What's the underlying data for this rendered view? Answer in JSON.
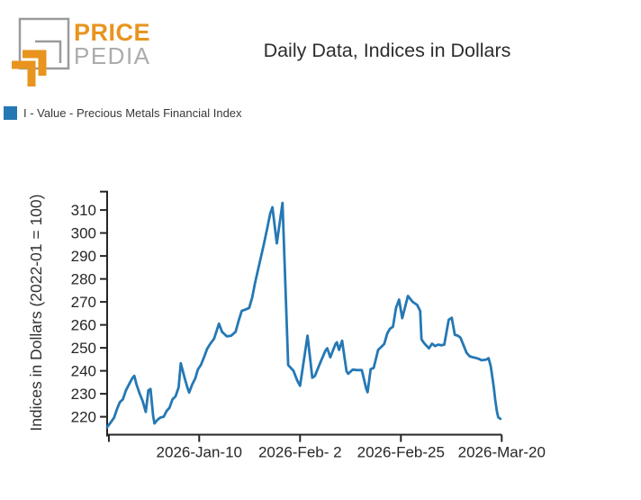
{
  "header": {
    "logo_line1": "PRICE",
    "logo_line2": "PEDIA",
    "title": "Daily Data, Indices in Dollars"
  },
  "legend": {
    "swatch_color": "#2478b4",
    "label": "I - Value - Precious Metals Financial Index"
  },
  "colors": {
    "series_blue": "#2478b4",
    "axis": "#262626",
    "logo_orange": "#E8941E",
    "logo_gray": "#9B9B9B",
    "title_text": "#2d2d2d"
  },
  "chart_data": {
    "type": "line",
    "title": "Daily Data, Indices in Dollars",
    "xlabel": "",
    "ylabel": "Indices in Dollars (2022-01 = 100)",
    "grid": false,
    "legend_position": "top-left",
    "ylim": [
      212.2,
      318.4
    ],
    "y_ticks": [
      220,
      230,
      240,
      250,
      260,
      270,
      280,
      290,
      300,
      310
    ],
    "x_unit": "day-index (daily observations)",
    "x_range": [
      0,
      90
    ],
    "x_ticks": [
      {
        "day": 21,
        "label": "2026-Jan-10"
      },
      {
        "day": 44,
        "label": "2026-Feb- 2"
      },
      {
        "day": 67,
        "label": "2026-Feb-25"
      },
      {
        "day": 90,
        "label": "2026-Mar-20"
      }
    ],
    "x_minor_ticks": [
      0.4
    ],
    "series": [
      {
        "name": "I - Value - Precious Metals Financial Index",
        "color": "#2478b4",
        "points": [
          [
            0,
            215.5
          ],
          [
            0.8,
            217.5
          ],
          [
            1.6,
            219.7
          ],
          [
            2.3,
            223.6
          ],
          [
            2.9,
            226.3
          ],
          [
            3.6,
            227.6
          ],
          [
            4.3,
            231.5
          ],
          [
            5,
            234.1
          ],
          [
            5.7,
            236.7
          ],
          [
            6.2,
            237.8
          ],
          [
            6.7,
            234.1
          ],
          [
            7.4,
            230.2
          ],
          [
            8.1,
            226.9
          ],
          [
            8.8,
            222.1
          ],
          [
            9.4,
            231.5
          ],
          [
            9.9,
            232.1
          ],
          [
            10.5,
            220.4
          ],
          [
            10.8,
            217.1
          ],
          [
            11.5,
            218.7
          ],
          [
            12.2,
            219.7
          ],
          [
            12.9,
            220.0
          ],
          [
            13.6,
            222.6
          ],
          [
            14.2,
            223.9
          ],
          [
            14.9,
            227.6
          ],
          [
            15.6,
            228.9
          ],
          [
            16.3,
            232.8
          ],
          [
            16.8,
            243.3
          ],
          [
            17.7,
            236.7
          ],
          [
            18.3,
            232.8
          ],
          [
            18.7,
            230.5
          ],
          [
            19.4,
            234.1
          ],
          [
            20.1,
            236.7
          ],
          [
            20.7,
            240.6
          ],
          [
            21.4,
            242.6
          ],
          [
            22.1,
            245.9
          ],
          [
            22.8,
            249.5
          ],
          [
            23.5,
            251.7
          ],
          [
            24.4,
            254.0
          ],
          [
            25.5,
            260.5
          ],
          [
            26.2,
            257.0
          ],
          [
            27.3,
            255.0
          ],
          [
            28.3,
            255.3
          ],
          [
            29.3,
            257.0
          ],
          [
            30,
            261.8
          ],
          [
            30.7,
            266.1
          ],
          [
            31.7,
            266.8
          ],
          [
            32.4,
            267.4
          ],
          [
            33.1,
            272.0
          ],
          [
            33.7,
            277.9
          ],
          [
            34.4,
            283.8
          ],
          [
            35.1,
            289.6
          ],
          [
            35.8,
            295.5
          ],
          [
            36.5,
            302.0
          ],
          [
            37.2,
            308.6
          ],
          [
            37.7,
            311.2
          ],
          [
            38.7,
            295.5
          ],
          [
            40,
            313.1
          ],
          [
            41.3,
            242.5
          ],
          [
            42.5,
            240.0
          ],
          [
            43.3,
            236.0
          ],
          [
            44,
            233.5
          ],
          [
            45.7,
            255.3
          ],
          [
            46.8,
            237.0
          ],
          [
            47.4,
            237.8
          ],
          [
            48.6,
            243.5
          ],
          [
            49.8,
            248.8
          ],
          [
            50.2,
            249.8
          ],
          [
            50.9,
            245.9
          ],
          [
            52.1,
            251.7
          ],
          [
            52.4,
            252.4
          ],
          [
            52.9,
            249.1
          ],
          [
            53.6,
            253.1
          ],
          [
            54.6,
            239.8
          ],
          [
            55,
            238.7
          ],
          [
            56,
            240.5
          ],
          [
            57,
            240.3
          ],
          [
            58.1,
            240.3
          ],
          [
            59.1,
            232.2
          ],
          [
            59.4,
            230.7
          ],
          [
            60.1,
            240.7
          ],
          [
            60.8,
            241.3
          ],
          [
            61.8,
            249.1
          ],
          [
            62.5,
            250.4
          ],
          [
            63.2,
            251.7
          ],
          [
            63.9,
            256.3
          ],
          [
            64.5,
            258.3
          ],
          [
            65.2,
            259.2
          ],
          [
            65.9,
            267.4
          ],
          [
            66.6,
            271.0
          ],
          [
            67.3,
            262.9
          ],
          [
            68.6,
            272.6
          ],
          [
            69.7,
            270.0
          ],
          [
            70.7,
            268.7
          ],
          [
            71.4,
            266.1
          ],
          [
            71.7,
            253.7
          ],
          [
            72.4,
            251.8
          ],
          [
            73.4,
            249.8
          ],
          [
            74.1,
            251.8
          ],
          [
            74.8,
            250.8
          ],
          [
            75.5,
            251.4
          ],
          [
            76.2,
            251.1
          ],
          [
            76.9,
            251.4
          ],
          [
            77.9,
            262.2
          ],
          [
            78.6,
            263.1
          ],
          [
            79.3,
            255.7
          ],
          [
            80,
            255.3
          ],
          [
            80.6,
            254.4
          ],
          [
            81.3,
            251.1
          ],
          [
            82,
            247.8
          ],
          [
            82.7,
            246.3
          ],
          [
            83.4,
            245.9
          ],
          [
            84.1,
            245.6
          ],
          [
            84.8,
            245.2
          ],
          [
            85.4,
            244.6
          ],
          [
            86.5,
            244.9
          ],
          [
            87,
            245.5
          ],
          [
            87.5,
            242.0
          ],
          [
            87.8,
            238.0
          ],
          [
            88.2,
            232.8
          ],
          [
            88.5,
            227.6
          ],
          [
            88.9,
            222.4
          ],
          [
            89.2,
            219.8
          ],
          [
            89.7,
            219.1
          ]
        ]
      }
    ]
  }
}
